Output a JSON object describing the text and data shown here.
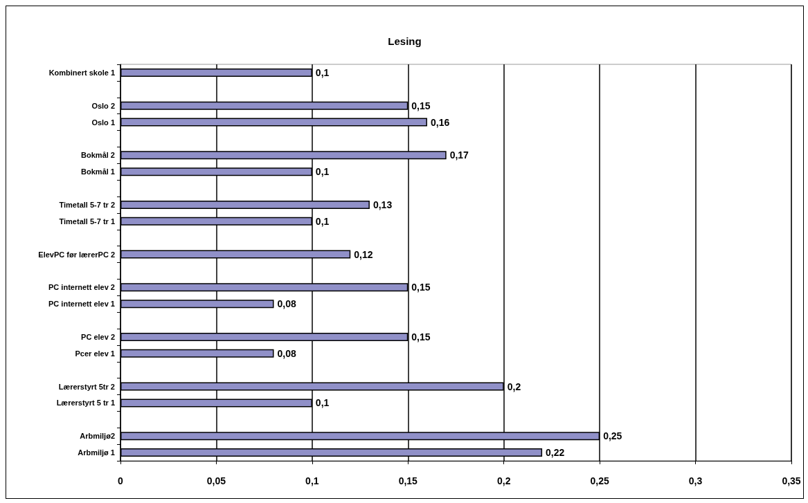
{
  "chart_data": {
    "type": "bar",
    "orientation": "horizontal",
    "title": "Lesing",
    "categories": [
      "Kombinert skole 1",
      null,
      "Oslo 2",
      "Oslo 1",
      null,
      "Bokmål 2",
      "Bokmål 1",
      null,
      "Timetall 5-7 tr 2",
      "Timetall 5-7 tr 1",
      null,
      "ElevPC før lærerPC 2",
      null,
      "PC internett elev 2",
      "PC internett elev 1",
      null,
      "PC elev 2",
      "Pcer elev 1",
      null,
      "Lærerstyrt 5tr 2",
      "Lærerstyrt 5 tr 1",
      null,
      "Arbmiljø2",
      "Arbmiljø 1"
    ],
    "values": [
      0.1,
      null,
      0.15,
      0.16,
      null,
      0.17,
      0.1,
      null,
      0.13,
      0.1,
      null,
      0.12,
      null,
      0.15,
      0.08,
      null,
      0.15,
      0.08,
      null,
      0.2,
      0.1,
      null,
      0.25,
      0.22
    ],
    "value_labels": [
      "0,1",
      null,
      "0,15",
      "0,16",
      null,
      "0,17",
      "0,1",
      null,
      "0,13",
      "0,1",
      null,
      "0,12",
      null,
      "0,15",
      "0,08",
      null,
      "0,15",
      "0,08",
      null,
      "0,2",
      "0,1",
      null,
      "0,25",
      "0,22"
    ],
    "color": "#9090c8",
    "xlim": [
      0,
      0.35
    ],
    "xticks": [
      0,
      {
        "value": 0.05,
        "label": "0,05"
      },
      {
        "value": 0.1,
        "label": "0,1"
      },
      {
        "value": 0.15,
        "label": "0,15"
      },
      {
        "value": 0.2,
        "label": "0,2"
      },
      {
        "value": 0.25,
        "label": "0,25"
      },
      {
        "value": 0.3,
        "label": "0,3"
      },
      {
        "value": 0.35,
        "label": "0,35"
      }
    ],
    "grid": "x"
  }
}
